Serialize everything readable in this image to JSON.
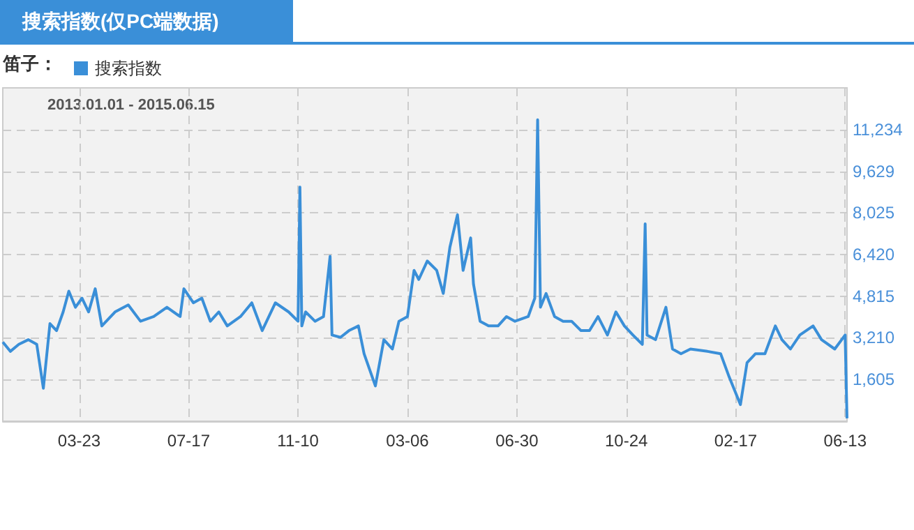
{
  "chart_data": {
    "type": "line",
    "title": "搜索指数(仅PC端数据)",
    "legend_title": "笛子：",
    "legend": "top left",
    "annotations": [
      "2013.01.01 - 2015.06.15"
    ],
    "grid": true,
    "marker": "none",
    "line_style": "solid",
    "xlim": [
      "2013-01-01",
      "2015-06-15"
    ],
    "xticks": [
      {
        "value": "2013-03-23",
        "label": "03-23"
      },
      {
        "value": "2013-07-17",
        "label": "07-17"
      },
      {
        "value": "2013-11-10",
        "label": "11-10"
      },
      {
        "value": "2014-03-06",
        "label": "03-06"
      },
      {
        "value": "2014-06-30",
        "label": "06-30"
      },
      {
        "value": "2014-10-24",
        "label": "10-24"
      },
      {
        "value": "2015-02-17",
        "label": "02-17"
      },
      {
        "value": "2015-06-13",
        "label": "06-13"
      }
    ],
    "ylim": [
      0,
      12839
    ],
    "yticks": [
      {
        "value": 1605,
        "label": "1,605"
      },
      {
        "value": 3210,
        "label": "3,210"
      },
      {
        "value": 4815,
        "label": "4,815"
      },
      {
        "value": 6420,
        "label": "6,420"
      },
      {
        "value": 8025,
        "label": "8,025"
      },
      {
        "value": 9629,
        "label": "9,629"
      },
      {
        "value": 11234,
        "label": "11,234"
      }
    ],
    "x": [
      "2013-01-01",
      "2013-01-09",
      "2013-01-18",
      "2013-01-28",
      "2013-02-06",
      "2013-02-13",
      "2013-02-20",
      "2013-02-27",
      "2013-03-06",
      "2013-03-12",
      "2013-03-19",
      "2013-03-26",
      "2013-04-02",
      "2013-04-09",
      "2013-04-16",
      "2013-04-30",
      "2013-05-14",
      "2013-05-27",
      "2013-06-10",
      "2013-06-24",
      "2013-07-08",
      "2013-07-12",
      "2013-07-22",
      "2013-07-31",
      "2013-08-09",
      "2013-08-18",
      "2013-08-27",
      "2013-09-10",
      "2013-09-22",
      "2013-10-03",
      "2013-10-17",
      "2013-10-31",
      "2013-11-10",
      "2013-11-12",
      "2013-11-14",
      "2013-11-18",
      "2013-11-28",
      "2013-12-07",
      "2013-12-14",
      "2013-12-16",
      "2013-12-25",
      "2014-01-03",
      "2014-01-13",
      "2014-01-19",
      "2014-01-31",
      "2014-02-09",
      "2014-02-18",
      "2014-02-25",
      "2014-03-06",
      "2014-03-13",
      "2014-03-18",
      "2014-03-27",
      "2014-04-06",
      "2014-04-13",
      "2014-04-20",
      "2014-04-28",
      "2014-05-04",
      "2014-05-12",
      "2014-05-15",
      "2014-05-22",
      "2014-05-31",
      "2014-06-10",
      "2014-06-19",
      "2014-06-28",
      "2014-07-12",
      "2014-07-19",
      "2014-07-22",
      "2014-07-25",
      "2014-07-31",
      "2014-08-09",
      "2014-08-18",
      "2014-08-27",
      "2014-09-06",
      "2014-09-15",
      "2014-09-24",
      "2014-10-04",
      "2014-10-13",
      "2014-10-22",
      "2014-10-31",
      "2014-11-10",
      "2014-11-13",
      "2014-11-15",
      "2014-11-24",
      "2014-12-05",
      "2014-12-12",
      "2014-12-21",
      "2014-12-31",
      "2015-01-18",
      "2015-02-01",
      "2015-02-10",
      "2015-02-22",
      "2015-03-01",
      "2015-03-10",
      "2015-03-20",
      "2015-03-31",
      "2015-04-07",
      "2015-04-16",
      "2015-04-26",
      "2015-05-10",
      "2015-05-19",
      "2015-06-02",
      "2015-06-13",
      "2015-06-15"
    ],
    "series": [
      {
        "name": "搜索指数",
        "color": "#3a8fd8",
        "values": [
          3050,
          2690,
          2960,
          3140,
          2960,
          1270,
          3760,
          3490,
          4210,
          5010,
          4390,
          4740,
          4210,
          5100,
          3670,
          4210,
          4480,
          3850,
          4030,
          4390,
          4030,
          5100,
          4560,
          4740,
          3850,
          4210,
          3670,
          4030,
          4560,
          3490,
          4560,
          4210,
          3850,
          9020,
          3670,
          4210,
          3850,
          4030,
          6350,
          3320,
          3230,
          3490,
          3670,
          2600,
          1360,
          3140,
          2780,
          3850,
          4030,
          5810,
          5460,
          6170,
          5810,
          4920,
          6700,
          7950,
          5810,
          7060,
          5280,
          3850,
          3670,
          3670,
          4030,
          3850,
          4030,
          4740,
          11610,
          4390,
          4920,
          4030,
          3850,
          3850,
          3490,
          3490,
          4030,
          3320,
          4210,
          3670,
          3320,
          2960,
          7600,
          3320,
          3140,
          4390,
          2780,
          2600,
          2780,
          2690,
          2600,
          1710,
          640,
          2250,
          2600,
          2600,
          3670,
          3140,
          2780,
          3320,
          3670,
          3140,
          2780,
          3320,
          110
        ]
      }
    ]
  }
}
